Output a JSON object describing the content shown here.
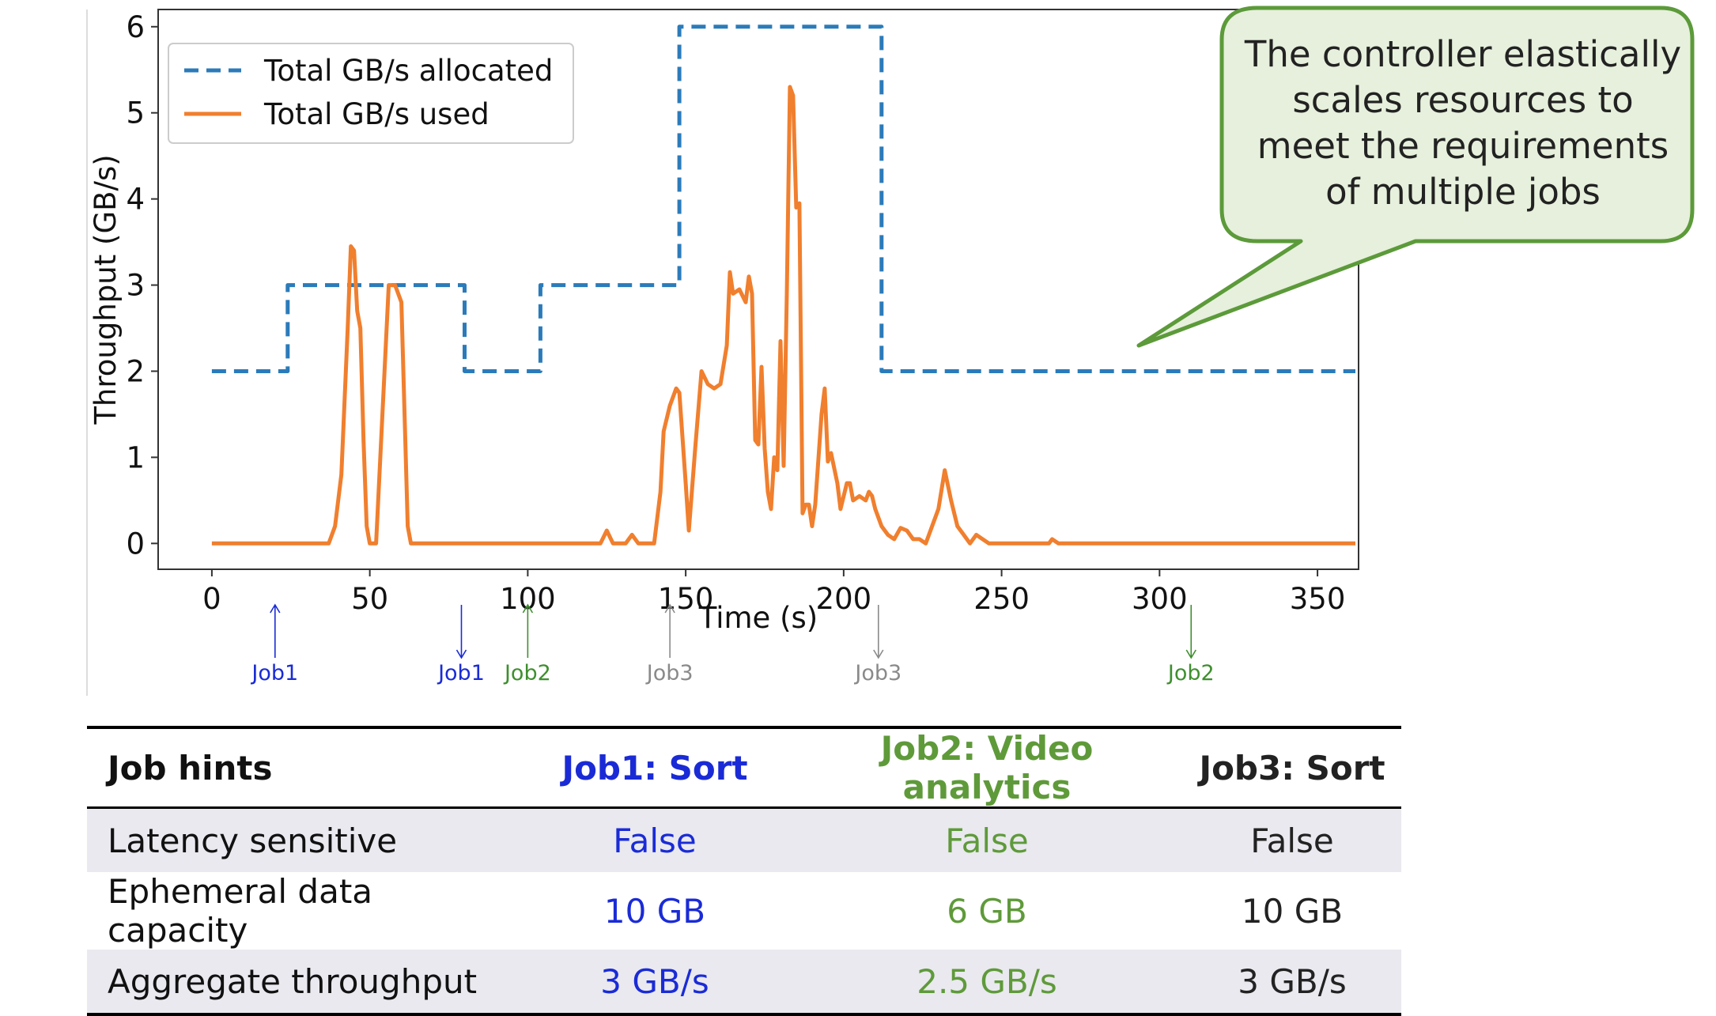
{
  "chart_data": {
    "type": "line",
    "xlabel": "Time (s)",
    "ylabel": "Throughput (GB/s)",
    "xlim": [
      -17,
      363
    ],
    "ylim": [
      -0.3,
      6.2
    ],
    "xticks": [
      0,
      50,
      100,
      150,
      200,
      250,
      300,
      350
    ],
    "yticks": [
      0,
      1,
      2,
      3,
      4,
      5,
      6
    ],
    "grid": false,
    "legend_position": "top-left",
    "series": [
      {
        "name": "Total GB/s allocated",
        "color": "#2b7bba",
        "style": "dashed",
        "points": [
          [
            0,
            2
          ],
          [
            24,
            2
          ],
          [
            24,
            3
          ],
          [
            80,
            3
          ],
          [
            80,
            2
          ],
          [
            104,
            2
          ],
          [
            104,
            3
          ],
          [
            148,
            3
          ],
          [
            148,
            6
          ],
          [
            212,
            6
          ],
          [
            212,
            2
          ],
          [
            362,
            2
          ]
        ]
      },
      {
        "name": "Total GB/s used",
        "color": "#f07f2e",
        "style": "solid",
        "points": [
          [
            0,
            0
          ],
          [
            37,
            0
          ],
          [
            39,
            0.2
          ],
          [
            41,
            0.8
          ],
          [
            43,
            2.5
          ],
          [
            44,
            3.45
          ],
          [
            45,
            3.4
          ],
          [
            46,
            2.7
          ],
          [
            47,
            2.5
          ],
          [
            48,
            1.2
          ],
          [
            49,
            0.2
          ],
          [
            50,
            0
          ],
          [
            52,
            0
          ],
          [
            54,
            1.5
          ],
          [
            56,
            3.0
          ],
          [
            58,
            3.0
          ],
          [
            60,
            2.8
          ],
          [
            61,
            1.5
          ],
          [
            62,
            0.2
          ],
          [
            63,
            0
          ],
          [
            123,
            0
          ],
          [
            125,
            0.15
          ],
          [
            127,
            0
          ],
          [
            131,
            0
          ],
          [
            133,
            0.1
          ],
          [
            135,
            0
          ],
          [
            140,
            0
          ],
          [
            142,
            0.6
          ],
          [
            143,
            1.3
          ],
          [
            145,
            1.6
          ],
          [
            147,
            1.8
          ],
          [
            148,
            1.75
          ],
          [
            150,
            0.7
          ],
          [
            151,
            0.15
          ],
          [
            153,
            1.1
          ],
          [
            155,
            2.0
          ],
          [
            157,
            1.85
          ],
          [
            159,
            1.8
          ],
          [
            161,
            1.85
          ],
          [
            163,
            2.3
          ],
          [
            164,
            3.15
          ],
          [
            165,
            2.9
          ],
          [
            167,
            2.95
          ],
          [
            169,
            2.8
          ],
          [
            170,
            3.1
          ],
          [
            171,
            2.9
          ],
          [
            172,
            1.2
          ],
          [
            173,
            1.15
          ],
          [
            174,
            2.05
          ],
          [
            175,
            1.1
          ],
          [
            176,
            0.6
          ],
          [
            177,
            0.4
          ],
          [
            178,
            1.0
          ],
          [
            179,
            0.85
          ],
          [
            180,
            2.35
          ],
          [
            181,
            0.9
          ],
          [
            182,
            2.9
          ],
          [
            183,
            5.3
          ],
          [
            184,
            5.2
          ],
          [
            185,
            3.9
          ],
          [
            186,
            3.95
          ],
          [
            187,
            0.35
          ],
          [
            188,
            0.45
          ],
          [
            189,
            0.45
          ],
          [
            190,
            0.2
          ],
          [
            191,
            0.45
          ],
          [
            193,
            1.5
          ],
          [
            194,
            1.8
          ],
          [
            195,
            0.95
          ],
          [
            196,
            1.05
          ],
          [
            198,
            0.7
          ],
          [
            199,
            0.4
          ],
          [
            201,
            0.7
          ],
          [
            202,
            0.7
          ],
          [
            203,
            0.5
          ],
          [
            205,
            0.55
          ],
          [
            207,
            0.5
          ],
          [
            208,
            0.6
          ],
          [
            209,
            0.55
          ],
          [
            210,
            0.4
          ],
          [
            212,
            0.2
          ],
          [
            214,
            0.1
          ],
          [
            216,
            0.05
          ],
          [
            218,
            0.18
          ],
          [
            220,
            0.15
          ],
          [
            222,
            0.05
          ],
          [
            224,
            0.05
          ],
          [
            226,
            0.0
          ],
          [
            228,
            0.2
          ],
          [
            230,
            0.4
          ],
          [
            232,
            0.85
          ],
          [
            234,
            0.5
          ],
          [
            236,
            0.2
          ],
          [
            238,
            0.1
          ],
          [
            240,
            0.0
          ],
          [
            242,
            0.1
          ],
          [
            244,
            0.05
          ],
          [
            246,
            0
          ],
          [
            265,
            0
          ],
          [
            266,
            0.05
          ],
          [
            268,
            0
          ],
          [
            362,
            0
          ]
        ]
      }
    ],
    "markers": [
      {
        "x": 20,
        "label": "Job1",
        "direction": "up",
        "color": "#1a2bd6"
      },
      {
        "x": 79,
        "label": "Job1",
        "direction": "down",
        "color": "#1a2bd6"
      },
      {
        "x": 100,
        "label": "Job2",
        "direction": "up",
        "color": "#3f8f2f"
      },
      {
        "x": 145,
        "label": "Job3",
        "direction": "up",
        "color": "#8a8a8a"
      },
      {
        "x": 211,
        "label": "Job3",
        "direction": "down",
        "color": "#8a8a8a"
      },
      {
        "x": 310,
        "label": "Job2",
        "direction": "down",
        "color": "#3f8f2f"
      }
    ],
    "annotation": "The controller elastically scales resources to meet the requirements of multiple jobs"
  },
  "callout": {
    "lines": [
      "The controller elastically",
      "scales resources to",
      "meet the requirements",
      "of multiple jobs"
    ],
    "fill": "#e6f0dc",
    "border": "#5c9a3a"
  },
  "table": {
    "headers": [
      "Job hints",
      "Job1: Sort",
      "Job2: Video analytics",
      "Job3: Sort"
    ],
    "rows": [
      [
        "Latency sensitive",
        "False",
        "False",
        "False"
      ],
      [
        "Ephemeral data capacity",
        "10 GB",
        "6 GB",
        "10 GB"
      ],
      [
        "Aggregate throughput",
        "3 GB/s",
        "2.5 GB/s",
        "3 GB/s"
      ]
    ],
    "column_colors": [
      "#111111",
      "#1a2bd6",
      "#5f9a3a",
      "#222222"
    ]
  }
}
